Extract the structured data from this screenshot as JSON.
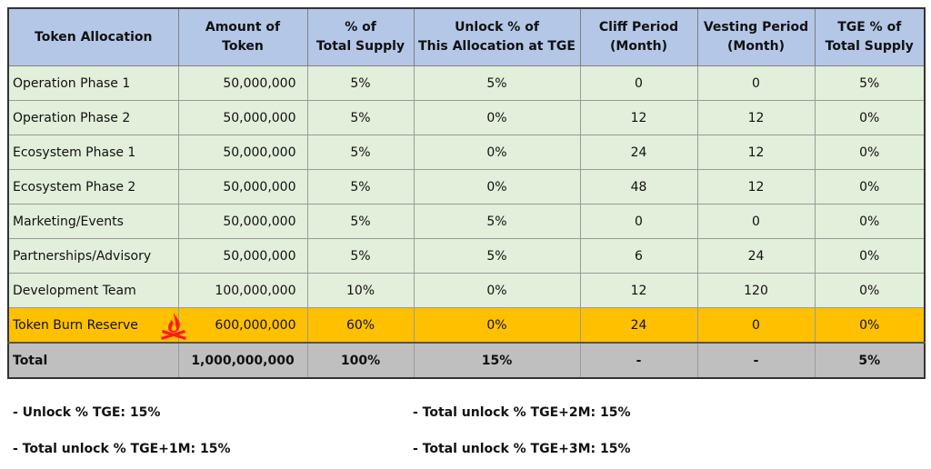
{
  "table": {
    "headers": [
      "Token Allocation",
      "Amount of\nToken",
      "% of\nTotal Supply",
      "Unlock % of\nThis Allocation at TGE",
      "Cliff Period\n(Month)",
      "Vesting Period\n(Month)",
      "TGE % of\nTotal Supply"
    ],
    "rows": [
      [
        "Operation Phase 1",
        "50,000,000",
        "5%",
        "5%",
        "0",
        "0",
        "5%"
      ],
      [
        "Operation Phase 2",
        "50,000,000",
        "5%",
        "0%",
        "12",
        "12",
        "0%"
      ],
      [
        "Ecosystem Phase 1",
        "50,000,000",
        "5%",
        "0%",
        "24",
        "12",
        "0%"
      ],
      [
        "Ecosystem Phase 2",
        "50,000,000",
        "5%",
        "0%",
        "48",
        "12",
        "0%"
      ],
      [
        "Marketing/Events",
        "50,000,000",
        "5%",
        "5%",
        "0",
        "0",
        "0%"
      ],
      [
        "Partnerships/Advisory",
        "50,000,000",
        "5%",
        "5%",
        "6",
        "24",
        "0%"
      ],
      [
        "Development Team",
        "100,000,000",
        "10%",
        "0%",
        "12",
        "120",
        "0%"
      ],
      [
        "Token Burn Reserve",
        "600,000,000",
        "60%",
        "0%",
        "24",
        "0",
        "0%"
      ]
    ],
    "total": [
      "Total",
      "1,000,000,000",
      "100%",
      "15%",
      "-",
      "-",
      "5%"
    ],
    "highlight_color": "#ffc000",
    "row_color": "#e2efda",
    "header_color": "#b4c7e7",
    "total_color": "#bfbfbf",
    "burn_icon": "fire-icon"
  },
  "notes": {
    "tge": "- Unlock % TGE: 15%",
    "tge1m": "- Total unlock % TGE+1M: 15%",
    "tge2m": "- Total unlock % TGE+2M: 15%",
    "tge3m": "- Total unlock % TGE+3M: 15%"
  }
}
